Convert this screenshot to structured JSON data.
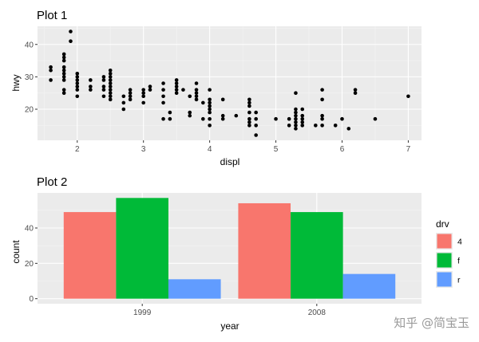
{
  "colors": {
    "panel": "#ebebeb",
    "grid_major": "#ffffff",
    "grid_minor": "#f4f4f4",
    "point": "#000000",
    "fill_4": "#f8766d",
    "fill_f": "#00ba38",
    "fill_r": "#619cff"
  },
  "watermark": "知乎 @简宝玉",
  "chart_data": [
    {
      "type": "scatter",
      "title": "Plot 1",
      "xlabel": "displ",
      "ylabel": "hwy",
      "xlim": [
        1.4,
        7.2
      ],
      "ylim": [
        10.4,
        45.6
      ],
      "xticks": [
        2,
        3,
        4,
        5,
        6,
        7
      ],
      "yticks": [
        20,
        30,
        40
      ],
      "grid": true,
      "points": [
        [
          1.6,
          33
        ],
        [
          1.6,
          32
        ],
        [
          1.6,
          29
        ],
        [
          1.8,
          29
        ],
        [
          1.8,
          26
        ],
        [
          1.8,
          25
        ],
        [
          1.8,
          33
        ],
        [
          1.8,
          35
        ],
        [
          1.8,
          36
        ],
        [
          1.8,
          37
        ],
        [
          1.8,
          31
        ],
        [
          1.8,
          32
        ],
        [
          1.8,
          30
        ],
        [
          1.9,
          44
        ],
        [
          1.9,
          41
        ],
        [
          2.0,
          31
        ],
        [
          2.0,
          30
        ],
        [
          2.0,
          29
        ],
        [
          2.0,
          28
        ],
        [
          2.0,
          27
        ],
        [
          2.0,
          26
        ],
        [
          2.0,
          24
        ],
        [
          2.2,
          29
        ],
        [
          2.2,
          27
        ],
        [
          2.2,
          26
        ],
        [
          2.4,
          29
        ],
        [
          2.4,
          27
        ],
        [
          2.4,
          26
        ],
        [
          2.4,
          24
        ],
        [
          2.4,
          30
        ],
        [
          2.5,
          32
        ],
        [
          2.5,
          31
        ],
        [
          2.5,
          30
        ],
        [
          2.5,
          29
        ],
        [
          2.5,
          28
        ],
        [
          2.5,
          27
        ],
        [
          2.5,
          26
        ],
        [
          2.5,
          25
        ],
        [
          2.5,
          24
        ],
        [
          2.5,
          23
        ],
        [
          2.7,
          24
        ],
        [
          2.7,
          22
        ],
        [
          2.7,
          20
        ],
        [
          2.8,
          26
        ],
        [
          2.8,
          25
        ],
        [
          2.8,
          24
        ],
        [
          2.8,
          23
        ],
        [
          3.0,
          26
        ],
        [
          3.0,
          25
        ],
        [
          3.0,
          24
        ],
        [
          3.0,
          22
        ],
        [
          3.1,
          27
        ],
        [
          3.1,
          26
        ],
        [
          3.3,
          28
        ],
        [
          3.3,
          26
        ],
        [
          3.3,
          24
        ],
        [
          3.3,
          22
        ],
        [
          3.3,
          17
        ],
        [
          3.4,
          19
        ],
        [
          3.4,
          17
        ],
        [
          3.5,
          29
        ],
        [
          3.5,
          28
        ],
        [
          3.5,
          27
        ],
        [
          3.5,
          26
        ],
        [
          3.5,
          25
        ],
        [
          3.6,
          26
        ],
        [
          3.7,
          24
        ],
        [
          3.7,
          19
        ],
        [
          3.7,
          18
        ],
        [
          3.8,
          28
        ],
        [
          3.8,
          26
        ],
        [
          3.8,
          25
        ],
        [
          3.8,
          24
        ],
        [
          3.8,
          23
        ],
        [
          3.9,
          22
        ],
        [
          3.9,
          17
        ],
        [
          4.0,
          26
        ],
        [
          4.0,
          23
        ],
        [
          4.0,
          22
        ],
        [
          4.0,
          21
        ],
        [
          4.0,
          20
        ],
        [
          4.0,
          19
        ],
        [
          4.0,
          17
        ],
        [
          4.0,
          15
        ],
        [
          4.2,
          23
        ],
        [
          4.2,
          18
        ],
        [
          4.2,
          17
        ],
        [
          4.4,
          18
        ],
        [
          4.6,
          23
        ],
        [
          4.6,
          22
        ],
        [
          4.6,
          21
        ],
        [
          4.6,
          19
        ],
        [
          4.6,
          17
        ],
        [
          4.6,
          16
        ],
        [
          4.6,
          15
        ],
        [
          4.7,
          19
        ],
        [
          4.7,
          17
        ],
        [
          4.7,
          15
        ],
        [
          4.7,
          12
        ],
        [
          5.0,
          17
        ],
        [
          5.2,
          17
        ],
        [
          5.2,
          15
        ],
        [
          5.3,
          25
        ],
        [
          5.3,
          20
        ],
        [
          5.3,
          19
        ],
        [
          5.3,
          18
        ],
        [
          5.3,
          17
        ],
        [
          5.3,
          16
        ],
        [
          5.3,
          15
        ],
        [
          5.3,
          14
        ],
        [
          5.4,
          20
        ],
        [
          5.4,
          18
        ],
        [
          5.4,
          17
        ],
        [
          5.4,
          16
        ],
        [
          5.4,
          15
        ],
        [
          5.6,
          15
        ],
        [
          5.7,
          26
        ],
        [
          5.7,
          23
        ],
        [
          5.7,
          18
        ],
        [
          5.7,
          17
        ],
        [
          5.7,
          15
        ],
        [
          5.9,
          15
        ],
        [
          6.0,
          17
        ],
        [
          6.1,
          14
        ],
        [
          6.2,
          26
        ],
        [
          6.2,
          25
        ],
        [
          6.5,
          17
        ],
        [
          7.0,
          24
        ]
      ]
    },
    {
      "type": "bar",
      "title": "Plot 2",
      "xlabel": "year",
      "ylabel": "count",
      "categories": [
        "1999",
        "2008"
      ],
      "ylim": [
        -2.85,
        59.85
      ],
      "yticks": [
        0,
        20,
        40
      ],
      "grid": true,
      "legend": {
        "title": "drv",
        "placement": "right"
      },
      "series": [
        {
          "name": "4",
          "values": [
            49,
            54
          ]
        },
        {
          "name": "f",
          "values": [
            57,
            49
          ]
        },
        {
          "name": "r",
          "values": [
            11,
            14
          ]
        }
      ]
    }
  ]
}
